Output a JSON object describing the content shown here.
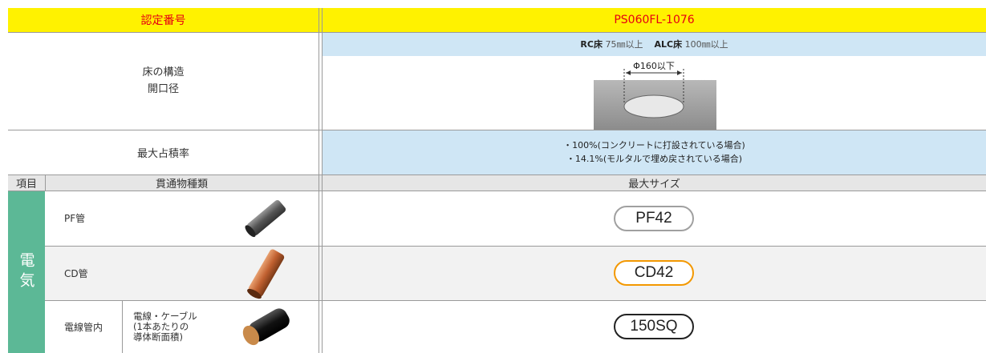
{
  "header": {
    "label": "認定番号",
    "value": "PS060FL-1076"
  },
  "structure": {
    "label_lines": [
      "床の構造",
      "開口径"
    ],
    "conditions": [
      {
        "floor": "RC床",
        "thickness": "75㎜以上"
      },
      {
        "floor": "ALC床",
        "thickness": "100㎜以上"
      }
    ],
    "diameter": "Φ160以下"
  },
  "occupancy": {
    "label": "最大占積率",
    "lines": [
      "・100%(コンクリートに打設されている場合)",
      "・14.1%(モルタルで埋め戻されている場合)"
    ]
  },
  "table": {
    "columns": [
      "項目",
      "貫通物種類",
      "最大サイズ"
    ],
    "category": "電気",
    "rows": [
      {
        "name": "PF管",
        "size": "PF42"
      },
      {
        "name": "CD管",
        "size": "CD42"
      },
      {
        "name": "電線管内",
        "sub_lines": [
          "電線・ケーブル",
          "(1本あたりの",
          "導体断面積)"
        ],
        "size": "150SQ"
      }
    ]
  }
}
